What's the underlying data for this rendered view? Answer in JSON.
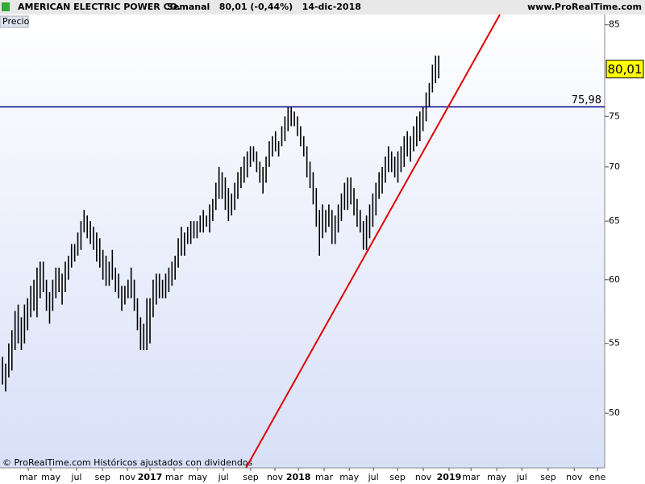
{
  "chart_data": {
    "type": "ohlc",
    "title": "AMERICAN ELECTRIC POWER CO.",
    "subtitle": "Semanal   80,01 (-0,44%)   14-dic-2018",
    "source": "www.ProRealTime.com",
    "panel_label": "Precio",
    "footer": "© ProRealTime.com Históricos ajustados con dividendos",
    "log_scale": true,
    "color": "#000000",
    "high": [
      54,
      53.5,
      55,
      56,
      57.5,
      58,
      57,
      58,
      58.5,
      59.5,
      60,
      61,
      61.5,
      61.5,
      60,
      59,
      60,
      61,
      61,
      60.5,
      61.5,
      62,
      63,
      63,
      64,
      65,
      66,
      65.5,
      65,
      64.5,
      64,
      63.5,
      62.5,
      62,
      61.5,
      62.5,
      61,
      60.5,
      59.5,
      59.5,
      60,
      61,
      60,
      58.5,
      57,
      56.5,
      58.5,
      58.5,
      60,
      60.5,
      60.5,
      60,
      60.5,
      61,
      61.5,
      62,
      63.5,
      64.5,
      64,
      64.5,
      65,
      65,
      65,
      65.5,
      66,
      65.5,
      66.5,
      67,
      68.5,
      70,
      69.5,
      69,
      68,
      67.5,
      68.5,
      69.5,
      70,
      71,
      71.5,
      72,
      72,
      71.5,
      70.5,
      70,
      71,
      72.5,
      73,
      73.5,
      72.5,
      74,
      75,
      76,
      76,
      75.5,
      75,
      74,
      73,
      72,
      70.5,
      69.5,
      68,
      66,
      66.5,
      66,
      66.5,
      66,
      65.5,
      66.5,
      67.5,
      68.5,
      69,
      69,
      68,
      67,
      66,
      65,
      65.5,
      66.5,
      67.5,
      68.5,
      69.5,
      70,
      71,
      72,
      71.5,
      71,
      71.5,
      72,
      73,
      73.5,
      73,
      74,
      75,
      75.5,
      76,
      77.5,
      78.5,
      80.5,
      81.5,
      81.5
    ],
    "low": [
      52,
      51.5,
      52.5,
      53,
      54.5,
      55,
      54.5,
      55,
      56,
      57,
      57.5,
      57,
      58.5,
      59,
      57.5,
      56.5,
      57.5,
      58.5,
      59,
      58,
      59,
      60,
      61,
      61.5,
      62,
      62.5,
      64,
      63.5,
      63,
      62.5,
      61.5,
      61,
      60,
      59.5,
      59.5,
      60,
      59,
      58.5,
      57.5,
      58,
      58.5,
      58.5,
      57.5,
      56,
      54.5,
      54.5,
      54.5,
      55,
      57,
      58,
      58.5,
      58.5,
      58.5,
      59,
      59.5,
      60,
      61,
      62,
      62,
      63,
      63,
      63.5,
      63.5,
      64,
      64,
      64.5,
      64,
      65,
      66,
      67,
      67,
      66,
      65,
      65.5,
      66,
      67,
      68,
      68.5,
      69,
      70,
      70.5,
      69.5,
      68.5,
      67.5,
      68.5,
      70,
      71,
      71.5,
      71,
      72,
      72.5,
      73.5,
      74,
      74,
      73,
      72,
      71,
      69,
      68,
      66.5,
      64.5,
      62,
      63.5,
      64,
      64.5,
      63,
      63,
      64,
      65,
      66,
      66,
      66.5,
      65.5,
      64.5,
      64,
      62.5,
      62.5,
      63.5,
      64.5,
      65.5,
      67,
      67.5,
      68.5,
      69.5,
      69.5,
      69,
      68.5,
      69.5,
      70,
      71,
      70.5,
      71.5,
      72,
      72.5,
      73.5,
      74.5,
      76,
      77.5,
      78.5,
      79
    ],
    "xlim": [
      -0.8,
      191.9
    ],
    "xticks": [
      {
        "value": 8.2,
        "label": "mar"
      },
      {
        "value": 15.4,
        "label": "may"
      },
      {
        "value": 23.6,
        "label": "jul"
      },
      {
        "value": 31.9,
        "label": "sep"
      },
      {
        "value": 39.8,
        "label": "nov"
      },
      {
        "value": 47.0,
        "label": "2017"
      },
      {
        "value": 54.7,
        "label": "mar"
      },
      {
        "value": 62.2,
        "label": "may"
      },
      {
        "value": 70.4,
        "label": "jul"
      },
      {
        "value": 79.1,
        "label": "sep"
      },
      {
        "value": 86.8,
        "label": "nov"
      },
      {
        "value": 94.3,
        "label": "2018"
      },
      {
        "value": 102.5,
        "label": "mar"
      },
      {
        "value": 110.5,
        "label": "may"
      },
      {
        "value": 118.2,
        "label": "jul"
      },
      {
        "value": 125.9,
        "label": "sep"
      },
      {
        "value": 134.1,
        "label": "nov"
      },
      {
        "value": 142.3,
        "label": "2019"
      },
      {
        "value": 149.3,
        "label": "mar"
      },
      {
        "value": 157.5,
        "label": "may"
      },
      {
        "value": 165.5,
        "label": "jul"
      },
      {
        "value": 173.9,
        "label": "sep"
      },
      {
        "value": 182.2,
        "label": "nov"
      },
      {
        "value": 189.6,
        "label": "ene"
      }
    ],
    "ylim": [
      46.4,
      86.2
    ],
    "yticks": [
      50,
      55,
      60,
      65,
      70,
      75,
      85
    ],
    "hline": {
      "value": 75.98,
      "label": "75,98",
      "color": "#00008b"
    },
    "trendline": {
      "x": [
        77.6,
        158.5
      ],
      "y": [
        46.4,
        86.2
      ],
      "color": "#e00000"
    },
    "last_price": {
      "value": 80.01,
      "label": "80,01",
      "color": "#ffff00"
    }
  }
}
